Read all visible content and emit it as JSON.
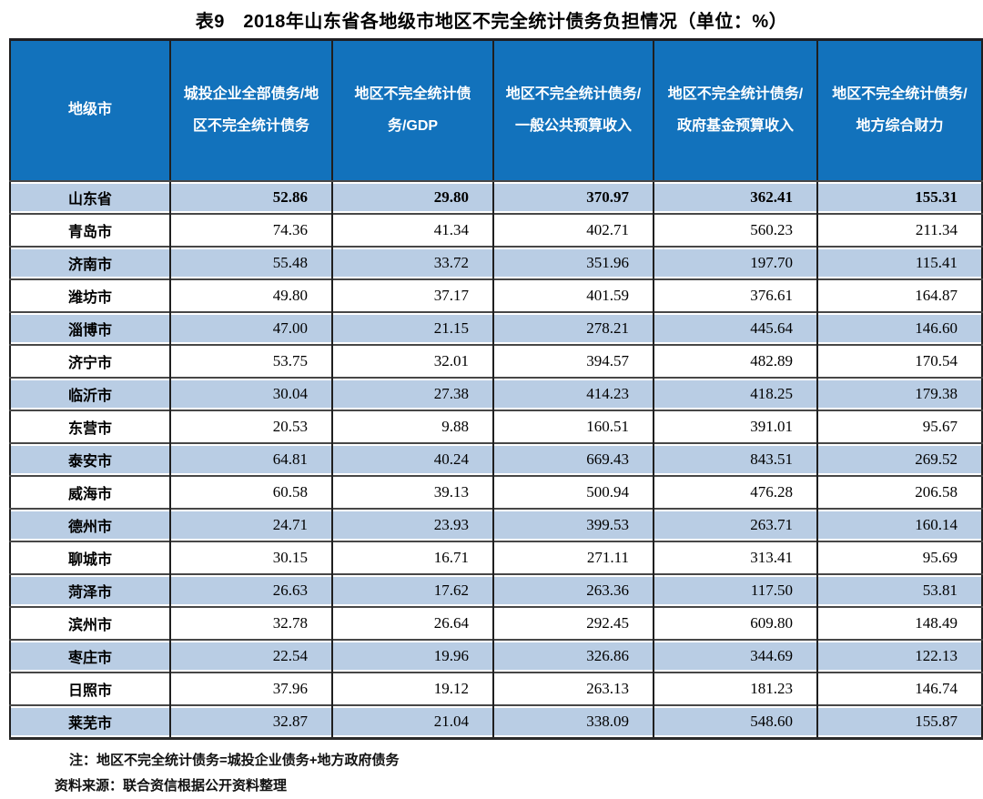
{
  "title": "表9　2018年山东省各地级市地区不完全统计债务负担情况（单位：%）",
  "table": {
    "columns": [
      "地级市",
      "城投企业全部债务/地区不完全统计债务",
      "地区不完全统计债务/GDP",
      "地区不完全统计债务/一般公共预算收入",
      "地区不完全统计债务/政府基金预算收入",
      "地区不完全统计债务/地方综合财力"
    ],
    "rows": [
      {
        "region": "山东省",
        "values": [
          "52.86",
          "29.80",
          "370.97",
          "362.41",
          "155.31"
        ],
        "bold": true
      },
      {
        "region": "青岛市",
        "values": [
          "74.36",
          "41.34",
          "402.71",
          "560.23",
          "211.34"
        ],
        "bold": false
      },
      {
        "region": "济南市",
        "values": [
          "55.48",
          "33.72",
          "351.96",
          "197.70",
          "115.41"
        ],
        "bold": false
      },
      {
        "region": "潍坊市",
        "values": [
          "49.80",
          "37.17",
          "401.59",
          "376.61",
          "164.87"
        ],
        "bold": false
      },
      {
        "region": "淄博市",
        "values": [
          "47.00",
          "21.15",
          "278.21",
          "445.64",
          "146.60"
        ],
        "bold": false
      },
      {
        "region": "济宁市",
        "values": [
          "53.75",
          "32.01",
          "394.57",
          "482.89",
          "170.54"
        ],
        "bold": false
      },
      {
        "region": "临沂市",
        "values": [
          "30.04",
          "27.38",
          "414.23",
          "418.25",
          "179.38"
        ],
        "bold": false
      },
      {
        "region": "东营市",
        "values": [
          "20.53",
          "9.88",
          "160.51",
          "391.01",
          "95.67"
        ],
        "bold": false
      },
      {
        "region": "泰安市",
        "values": [
          "64.81",
          "40.24",
          "669.43",
          "843.51",
          "269.52"
        ],
        "bold": false
      },
      {
        "region": "威海市",
        "values": [
          "60.58",
          "39.13",
          "500.94",
          "476.28",
          "206.58"
        ],
        "bold": false
      },
      {
        "region": "德州市",
        "values": [
          "24.71",
          "23.93",
          "399.53",
          "263.71",
          "160.14"
        ],
        "bold": false
      },
      {
        "region": "聊城市",
        "values": [
          "30.15",
          "16.71",
          "271.11",
          "313.41",
          "95.69"
        ],
        "bold": false
      },
      {
        "region": "菏泽市",
        "values": [
          "26.63",
          "17.62",
          "263.36",
          "117.50",
          "53.81"
        ],
        "bold": false
      },
      {
        "region": "滨州市",
        "values": [
          "32.78",
          "26.64",
          "292.45",
          "609.80",
          "148.49"
        ],
        "bold": false
      },
      {
        "region": "枣庄市",
        "values": [
          "22.54",
          "19.96",
          "326.86",
          "344.69",
          "122.13"
        ],
        "bold": false
      },
      {
        "region": "日照市",
        "values": [
          "37.96",
          "19.12",
          "263.13",
          "181.23",
          "146.74"
        ],
        "bold": false
      },
      {
        "region": "莱芜市",
        "values": [
          "32.87",
          "21.04",
          "338.09",
          "548.60",
          "155.87"
        ],
        "bold": false
      }
    ]
  },
  "notes": [
    "注：地区不完全统计债务=城投企业债务+地方政府债务",
    "资料来源：联合资信根据公开资料整理"
  ],
  "colors": {
    "header_bg": "#1272BC",
    "header_text": "#ffffff",
    "row_alt_bg": "#B9CDE4",
    "row_bg": "#ffffff",
    "outer_border": "#1f1f1f",
    "row_separator": "#474747",
    "text": "#000000"
  }
}
